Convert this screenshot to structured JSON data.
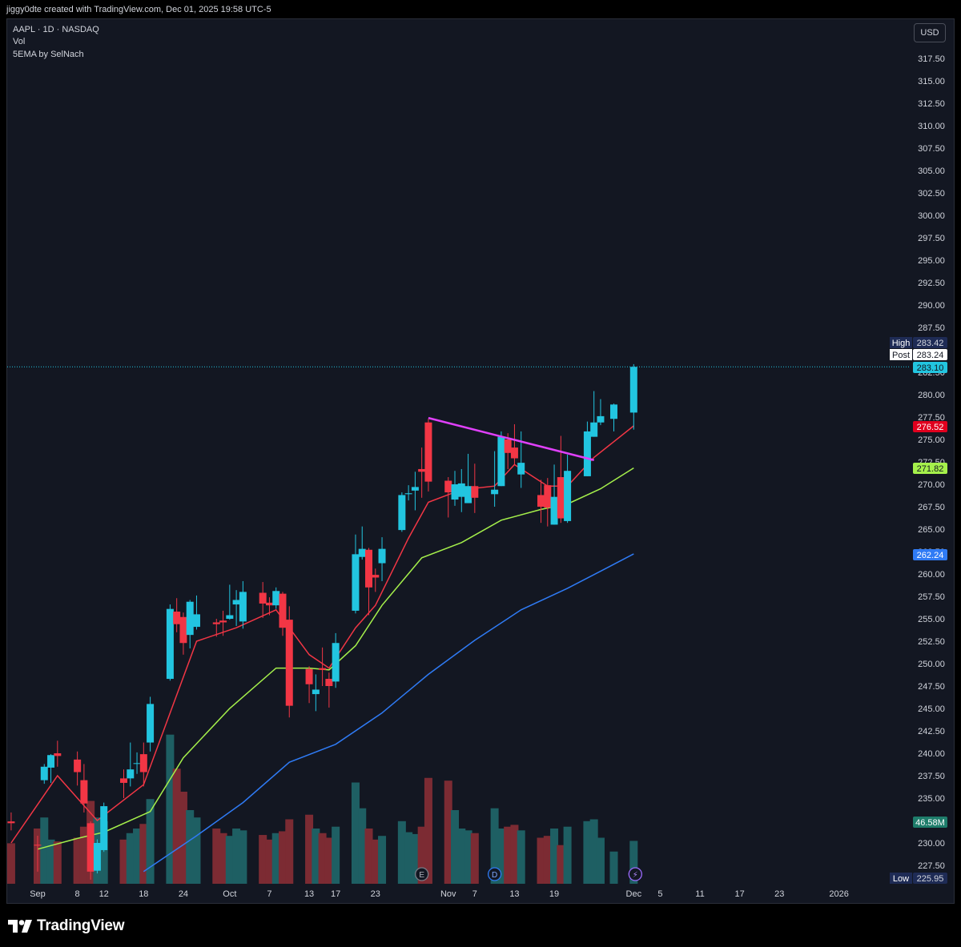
{
  "header": {
    "attribution": "jiggy0dte created with TradingView.com, Dec 01, 2025 19:58 UTC-5"
  },
  "legend": {
    "symbol": "AAPL · 1D · NASDAQ",
    "vol": "Vol",
    "indicator": "5EMA by SelNach"
  },
  "currency_button": "USD",
  "footer": {
    "brand": "TradingView"
  },
  "colors": {
    "background": "#131722",
    "up": "#22c5e0",
    "down": "#f23645",
    "up_volume": "#1e5f63",
    "down_volume": "#7c2b33",
    "ema_short": "#f23645",
    "ema_mid": "#a5f04b",
    "ema_long": "#2f7bf5",
    "trendline": "#e040fb",
    "axis_text": "#d1d4dc"
  },
  "chart_data": {
    "type": "candlestick",
    "symbol": "AAPL",
    "interval": "1D",
    "exchange": "NASDAQ",
    "currency": "USD",
    "y_axis_ticks": [
      "227.50",
      "230.00",
      "232.50",
      "235.00",
      "237.50",
      "240.00",
      "242.50",
      "245.00",
      "247.50",
      "250.00",
      "252.50",
      "255.00",
      "257.50",
      "260.00",
      "262.50",
      "265.00",
      "267.50",
      "270.00",
      "272.50",
      "275.00",
      "277.50",
      "280.00",
      "282.50",
      "287.50",
      "290.00",
      "292.50",
      "295.00",
      "297.50",
      "300.00",
      "302.50",
      "305.00",
      "307.50",
      "310.00",
      "312.50",
      "315.00",
      "317.50"
    ],
    "x_axis_ticks": [
      {
        "label": "Sep",
        "date": "2025-09-02"
      },
      {
        "label": "8",
        "date": "2025-09-08"
      },
      {
        "label": "12",
        "date": "2025-09-12"
      },
      {
        "label": "18",
        "date": "2025-09-18"
      },
      {
        "label": "24",
        "date": "2025-09-24"
      },
      {
        "label": "Oct",
        "date": "2025-10-01"
      },
      {
        "label": "7",
        "date": "2025-10-07"
      },
      {
        "label": "13",
        "date": "2025-10-13"
      },
      {
        "label": "17",
        "date": "2025-10-17"
      },
      {
        "label": "23",
        "date": "2025-10-23"
      },
      {
        "label": "Nov",
        "date": "2025-11-03"
      },
      {
        "label": "7",
        "date": "2025-11-07"
      },
      {
        "label": "13",
        "date": "2025-11-13"
      },
      {
        "label": "19",
        "date": "2025-11-19"
      },
      {
        "label": "Dec",
        "date": "2025-12-01"
      },
      {
        "label": "5",
        "date": "2025-12-05"
      },
      {
        "label": "11",
        "date": "2025-12-11"
      },
      {
        "label": "17",
        "date": "2025-12-17"
      },
      {
        "label": "23",
        "date": "2025-12-23"
      },
      {
        "label": "2026",
        "date": "2026-01-01"
      }
    ],
    "candles": [
      {
        "date": "2025-08-29",
        "o": 232.4,
        "h": 233.4,
        "l": 231.4,
        "c": 232.2
      },
      {
        "date": "2025-09-02",
        "o": 229.8,
        "h": 230.8,
        "l": 226.8,
        "c": 229.7
      },
      {
        "date": "2025-09-03",
        "o": 237.0,
        "h": 238.8,
        "l": 236.6,
        "c": 238.5
      },
      {
        "date": "2025-09-04",
        "o": 238.4,
        "h": 239.9,
        "l": 236.7,
        "c": 239.8
      },
      {
        "date": "2025-09-05",
        "o": 240.0,
        "h": 241.4,
        "l": 238.5,
        "c": 239.7
      },
      {
        "date": "2025-09-08",
        "o": 239.3,
        "h": 240.2,
        "l": 236.4,
        "c": 237.9
      },
      {
        "date": "2025-09-09",
        "o": 237.0,
        "h": 238.8,
        "l": 233.4,
        "c": 234.4
      },
      {
        "date": "2025-09-10",
        "o": 232.2,
        "h": 232.4,
        "l": 225.9,
        "c": 226.8
      },
      {
        "date": "2025-09-11",
        "o": 226.9,
        "h": 230.4,
        "l": 226.6,
        "c": 230.0
      },
      {
        "date": "2025-09-12",
        "o": 229.2,
        "h": 234.5,
        "l": 229.0,
        "c": 234.1
      },
      {
        "date": "2025-09-15",
        "o": 237.2,
        "h": 238.2,
        "l": 235.0,
        "c": 236.7
      },
      {
        "date": "2025-09-16",
        "o": 237.2,
        "h": 241.2,
        "l": 236.3,
        "c": 238.2
      },
      {
        "date": "2025-09-17",
        "o": 238.9,
        "h": 240.1,
        "l": 237.7,
        "c": 238.9
      },
      {
        "date": "2025-09-18",
        "o": 239.9,
        "h": 241.2,
        "l": 236.3,
        "c": 237.9
      },
      {
        "date": "2025-09-19",
        "o": 241.2,
        "h": 246.3,
        "l": 240.2,
        "c": 245.5
      },
      {
        "date": "2025-09-22",
        "o": 248.3,
        "h": 256.6,
        "l": 248.1,
        "c": 256.1
      },
      {
        "date": "2025-09-23",
        "o": 255.8,
        "h": 257.3,
        "l": 253.5,
        "c": 254.4
      },
      {
        "date": "2025-09-24",
        "o": 255.2,
        "h": 255.7,
        "l": 251.0,
        "c": 252.3
      },
      {
        "date": "2025-09-25",
        "o": 253.2,
        "h": 257.1,
        "l": 251.7,
        "c": 256.9
      },
      {
        "date": "2025-09-26",
        "o": 254.1,
        "h": 257.6,
        "l": 253.8,
        "c": 255.5
      },
      {
        "date": "2025-09-29",
        "o": 254.6,
        "h": 255.0,
        "l": 253.0,
        "c": 254.4
      },
      {
        "date": "2025-09-30",
        "o": 254.8,
        "h": 255.9,
        "l": 253.1,
        "c": 254.6
      },
      {
        "date": "2025-10-01",
        "o": 255.0,
        "h": 258.8,
        "l": 254.9,
        "c": 255.4
      },
      {
        "date": "2025-10-02",
        "o": 256.6,
        "h": 258.2,
        "l": 254.2,
        "c": 257.1
      },
      {
        "date": "2025-10-03",
        "o": 254.7,
        "h": 259.2,
        "l": 253.9,
        "c": 258.0
      },
      {
        "date": "2025-10-06",
        "o": 257.9,
        "h": 259.1,
        "l": 255.1,
        "c": 256.7
      },
      {
        "date": "2025-10-07",
        "o": 256.8,
        "h": 257.4,
        "l": 255.4,
        "c": 256.5
      },
      {
        "date": "2025-10-08",
        "o": 256.5,
        "h": 258.5,
        "l": 256.1,
        "c": 258.1
      },
      {
        "date": "2025-10-09",
        "o": 257.8,
        "h": 258.0,
        "l": 253.1,
        "c": 254.0
      },
      {
        "date": "2025-10-10",
        "o": 254.9,
        "h": 256.4,
        "l": 244.0,
        "c": 245.3
      },
      {
        "date": "2025-10-13",
        "o": 249.4,
        "h": 249.7,
        "l": 245.6,
        "c": 247.7
      },
      {
        "date": "2025-10-14",
        "o": 246.6,
        "h": 248.8,
        "l": 244.7,
        "c": 247.1
      },
      {
        "date": "2025-10-15",
        "o": 249.5,
        "h": 251.8,
        "l": 247.5,
        "c": 249.3
      },
      {
        "date": "2025-10-16",
        "o": 248.3,
        "h": 249.0,
        "l": 245.1,
        "c": 247.5
      },
      {
        "date": "2025-10-17",
        "o": 248.0,
        "h": 253.4,
        "l": 247.3,
        "c": 252.3
      },
      {
        "date": "2025-10-20",
        "o": 255.9,
        "h": 264.4,
        "l": 255.6,
        "c": 262.2
      },
      {
        "date": "2025-10-21",
        "o": 261.9,
        "h": 265.3,
        "l": 261.6,
        "c": 262.8
      },
      {
        "date": "2025-10-22",
        "o": 262.7,
        "h": 262.9,
        "l": 255.4,
        "c": 258.5
      },
      {
        "date": "2025-10-23",
        "o": 259.9,
        "h": 260.6,
        "l": 258.0,
        "c": 259.6
      },
      {
        "date": "2025-10-24",
        "o": 261.2,
        "h": 264.1,
        "l": 259.2,
        "c": 262.8
      },
      {
        "date": "2025-10-27",
        "o": 264.9,
        "h": 269.1,
        "l": 264.7,
        "c": 268.8
      },
      {
        "date": "2025-10-28",
        "o": 268.9,
        "h": 269.9,
        "l": 268.2,
        "c": 269.0
      },
      {
        "date": "2025-10-29",
        "o": 269.3,
        "h": 271.4,
        "l": 267.1,
        "c": 269.7
      },
      {
        "date": "2025-10-30",
        "o": 271.7,
        "h": 274.1,
        "l": 268.5,
        "c": 271.4
      },
      {
        "date": "2025-10-31",
        "o": 276.9,
        "h": 277.3,
        "l": 269.2,
        "c": 270.3
      },
      {
        "date": "2025-11-03",
        "o": 270.4,
        "h": 270.8,
        "l": 266.3,
        "c": 269.1
      },
      {
        "date": "2025-11-04",
        "o": 268.3,
        "h": 271.5,
        "l": 267.6,
        "c": 270.0
      },
      {
        "date": "2025-11-05",
        "o": 268.6,
        "h": 271.7,
        "l": 266.9,
        "c": 270.1
      },
      {
        "date": "2025-11-06",
        "o": 267.9,
        "h": 273.4,
        "l": 267.9,
        "c": 269.8
      },
      {
        "date": "2025-11-07",
        "o": 269.8,
        "h": 272.3,
        "l": 266.8,
        "c": 268.5
      },
      {
        "date": "2025-11-10",
        "o": 268.9,
        "h": 273.7,
        "l": 267.5,
        "c": 269.4
      },
      {
        "date": "2025-11-11",
        "o": 269.8,
        "h": 275.9,
        "l": 269.8,
        "c": 275.3
      },
      {
        "date": "2025-11-12",
        "o": 275.0,
        "h": 275.7,
        "l": 271.7,
        "c": 273.5
      },
      {
        "date": "2025-11-13",
        "o": 274.1,
        "h": 276.7,
        "l": 272.1,
        "c": 272.9
      },
      {
        "date": "2025-11-14",
        "o": 271.1,
        "h": 275.9,
        "l": 269.6,
        "c": 272.4
      },
      {
        "date": "2025-11-17",
        "o": 268.8,
        "h": 270.5,
        "l": 265.7,
        "c": 267.5
      },
      {
        "date": "2025-11-18",
        "o": 269.9,
        "h": 270.7,
        "l": 265.3,
        "c": 267.4
      },
      {
        "date": "2025-11-19",
        "o": 265.5,
        "h": 272.2,
        "l": 265.5,
        "c": 268.6
      },
      {
        "date": "2025-11-20",
        "o": 270.8,
        "h": 275.4,
        "l": 265.7,
        "c": 266.2
      },
      {
        "date": "2025-11-21",
        "o": 265.9,
        "h": 273.3,
        "l": 265.7,
        "c": 271.5
      },
      {
        "date": "2025-11-24",
        "o": 270.9,
        "h": 277.0,
        "l": 270.9,
        "c": 275.9
      },
      {
        "date": "2025-11-25",
        "o": 275.3,
        "h": 280.4,
        "l": 275.3,
        "c": 276.9
      },
      {
        "date": "2025-11-26",
        "o": 276.9,
        "h": 279.5,
        "l": 276.6,
        "c": 277.6
      },
      {
        "date": "2025-11-28",
        "o": 277.3,
        "h": 279.0,
        "l": 275.9,
        "c": 278.9
      },
      {
        "date": "2025-12-01",
        "o": 278.0,
        "h": 283.4,
        "l": 276.1,
        "c": 283.1
      }
    ],
    "volume_millions": [
      44,
      60,
      72,
      48,
      46,
      50,
      62,
      90,
      72,
      68,
      48,
      55,
      60,
      65,
      92,
      162,
      125,
      100,
      80,
      72,
      60,
      55,
      52,
      60,
      58,
      53,
      48,
      55,
      57,
      70,
      75,
      60,
      55,
      50,
      62,
      110,
      82,
      60,
      48,
      52,
      68,
      56,
      54,
      62,
      115,
      112,
      80,
      60,
      58,
      55,
      82,
      60,
      62,
      64,
      58,
      50,
      52,
      60,
      42,
      62,
      68,
      70,
      50,
      35,
      46.58
    ],
    "ema_short": [
      {
        "date": "2025-08-29",
        "v": 230.0
      },
      {
        "date": "2025-09-05",
        "v": 237.5
      },
      {
        "date": "2025-09-11",
        "v": 232.5
      },
      {
        "date": "2025-09-18",
        "v": 236.5
      },
      {
        "date": "2025-09-22",
        "v": 244.5
      },
      {
        "date": "2025-09-26",
        "v": 252.5
      },
      {
        "date": "2025-10-02",
        "v": 254.0
      },
      {
        "date": "2025-10-08",
        "v": 256.0
      },
      {
        "date": "2025-10-13",
        "v": 251.0
      },
      {
        "date": "2025-10-16",
        "v": 249.5
      },
      {
        "date": "2025-10-20",
        "v": 254.0
      },
      {
        "date": "2025-10-23",
        "v": 256.5
      },
      {
        "date": "2025-10-28",
        "v": 264.0
      },
      {
        "date": "2025-10-31",
        "v": 268.0
      },
      {
        "date": "2025-11-05",
        "v": 269.4
      },
      {
        "date": "2025-11-10",
        "v": 269.8
      },
      {
        "date": "2025-11-13",
        "v": 272.2
      },
      {
        "date": "2025-11-18",
        "v": 269.8
      },
      {
        "date": "2025-11-21",
        "v": 269.8
      },
      {
        "date": "2025-11-25",
        "v": 273.0
      },
      {
        "date": "2025-12-01",
        "v": 276.52
      }
    ],
    "ema_mid": [
      {
        "date": "2025-09-02",
        "v": 229.3
      },
      {
        "date": "2025-09-08",
        "v": 230.5
      },
      {
        "date": "2025-09-12",
        "v": 231.2
      },
      {
        "date": "2025-09-19",
        "v": 233.5
      },
      {
        "date": "2025-09-24",
        "v": 239.5
      },
      {
        "date": "2025-10-01",
        "v": 245.0
      },
      {
        "date": "2025-10-08",
        "v": 249.5
      },
      {
        "date": "2025-10-13",
        "v": 249.5
      },
      {
        "date": "2025-10-16",
        "v": 249.3
      },
      {
        "date": "2025-10-20",
        "v": 252.0
      },
      {
        "date": "2025-10-24",
        "v": 256.5
      },
      {
        "date": "2025-10-30",
        "v": 261.8
      },
      {
        "date": "2025-11-05",
        "v": 263.5
      },
      {
        "date": "2025-11-11",
        "v": 266.0
      },
      {
        "date": "2025-11-17",
        "v": 267.2
      },
      {
        "date": "2025-11-21",
        "v": 267.8
      },
      {
        "date": "2025-11-26",
        "v": 269.5
      },
      {
        "date": "2025-12-01",
        "v": 271.82
      }
    ],
    "ema_long": [
      {
        "date": "2025-09-18",
        "v": 226.8
      },
      {
        "date": "2025-09-26",
        "v": 230.8
      },
      {
        "date": "2025-10-03",
        "v": 234.5
      },
      {
        "date": "2025-10-10",
        "v": 239.0
      },
      {
        "date": "2025-10-17",
        "v": 241.0
      },
      {
        "date": "2025-10-24",
        "v": 244.5
      },
      {
        "date": "2025-10-31",
        "v": 248.8
      },
      {
        "date": "2025-11-07",
        "v": 252.6
      },
      {
        "date": "2025-11-14",
        "v": 256.0
      },
      {
        "date": "2025-11-21",
        "v": 258.4
      },
      {
        "date": "2025-11-26",
        "v": 260.3
      },
      {
        "date": "2025-12-01",
        "v": 262.24
      }
    ],
    "trendline": [
      {
        "date": "2025-10-31",
        "v": 277.4
      },
      {
        "date": "2025-11-25",
        "v": 272.7
      }
    ],
    "price_labels": {
      "high": {
        "label": "High",
        "value": "283.42"
      },
      "post": {
        "label": "Post",
        "value": "283.24"
      },
      "last": {
        "value": "283.10"
      },
      "ema_short": {
        "value": "276.52"
      },
      "ema_mid": {
        "value": "271.82"
      },
      "ema_long": {
        "value": "262.24"
      },
      "volume": {
        "value": "46.58M"
      },
      "low": {
        "label": "Low",
        "value": "225.95"
      }
    },
    "event_markers": [
      {
        "date": "2025-10-30",
        "letter": "E"
      },
      {
        "date": "2025-11-10",
        "letter": "D"
      }
    ],
    "legend_placement": "top-left",
    "grid": false
  }
}
